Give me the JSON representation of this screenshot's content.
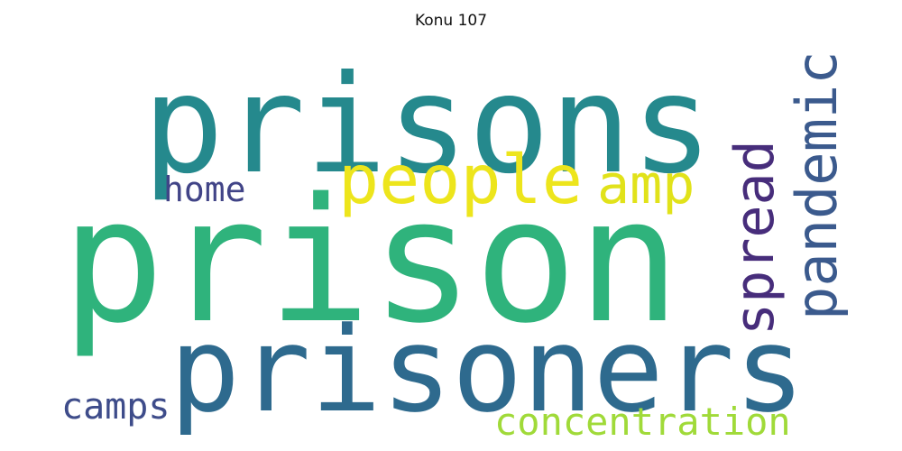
{
  "title": "Konu 107",
  "words": [
    {
      "text": "prisons",
      "color": "#25898d",
      "weight": 1.0,
      "rotate": 0
    },
    {
      "text": "prison",
      "color": "#2fb37c",
      "weight": 0.96,
      "rotate": 0
    },
    {
      "text": "prisoners",
      "color": "#2e6a8e",
      "weight": 0.78,
      "rotate": 0
    },
    {
      "text": "people",
      "color": "#ede51c",
      "weight": 0.46,
      "rotate": 0
    },
    {
      "text": "pandemic",
      "color": "#3b5a8d",
      "weight": 0.42,
      "rotate": -90
    },
    {
      "text": "spread",
      "color": "#472d7b",
      "weight": 0.41,
      "rotate": -90
    },
    {
      "text": "amp",
      "color": "#e1e21a",
      "weight": 0.33,
      "rotate": 0
    },
    {
      "text": "concentration",
      "color": "#a0da39",
      "weight": 0.25,
      "rotate": 0
    },
    {
      "text": "camps",
      "color": "#3e4c8a",
      "weight": 0.24,
      "rotate": 0
    },
    {
      "text": "home",
      "color": "#414487",
      "weight": 0.23,
      "rotate": 0
    }
  ]
}
